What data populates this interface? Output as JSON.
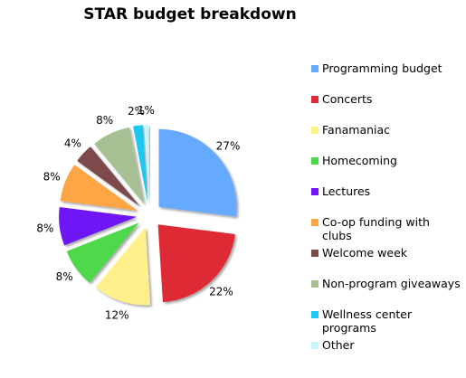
{
  "chart_data": {
    "type": "pie",
    "title": "STAR budget breakdown",
    "exploded": true,
    "slices": [
      {
        "label": "Programming budget",
        "value": 27,
        "value_label": "27%",
        "color": "#66aaff"
      },
      {
        "label": "Concerts",
        "value": 22,
        "value_label": "22%",
        "color": "#dd2c35"
      },
      {
        "label": "Fanamaniac",
        "value": 12,
        "value_label": "12%",
        "color": "#fff08c"
      },
      {
        "label": "Homecoming",
        "value": 8,
        "value_label": "8%",
        "color": "#4fd848"
      },
      {
        "label": "Lectures",
        "value": 8,
        "value_label": "8%",
        "color": "#6e14f5"
      },
      {
        "label": "Co-op funding with clubs",
        "value": 8,
        "value_label": "8%",
        "color": "#fea545"
      },
      {
        "label": "Welcome week",
        "value": 4,
        "value_label": "4%",
        "color": "#7e4a4c"
      },
      {
        "label": "Non-program giveaways",
        "value": 8,
        "value_label": "8%",
        "color": "#a6c094"
      },
      {
        "label": "Wellness center programs",
        "value": 2,
        "value_label": "2%",
        "color": "#1ec8f2"
      },
      {
        "label": "Other",
        "value": 1,
        "value_label": "1%",
        "color": "#c6f6fb"
      }
    ]
  }
}
